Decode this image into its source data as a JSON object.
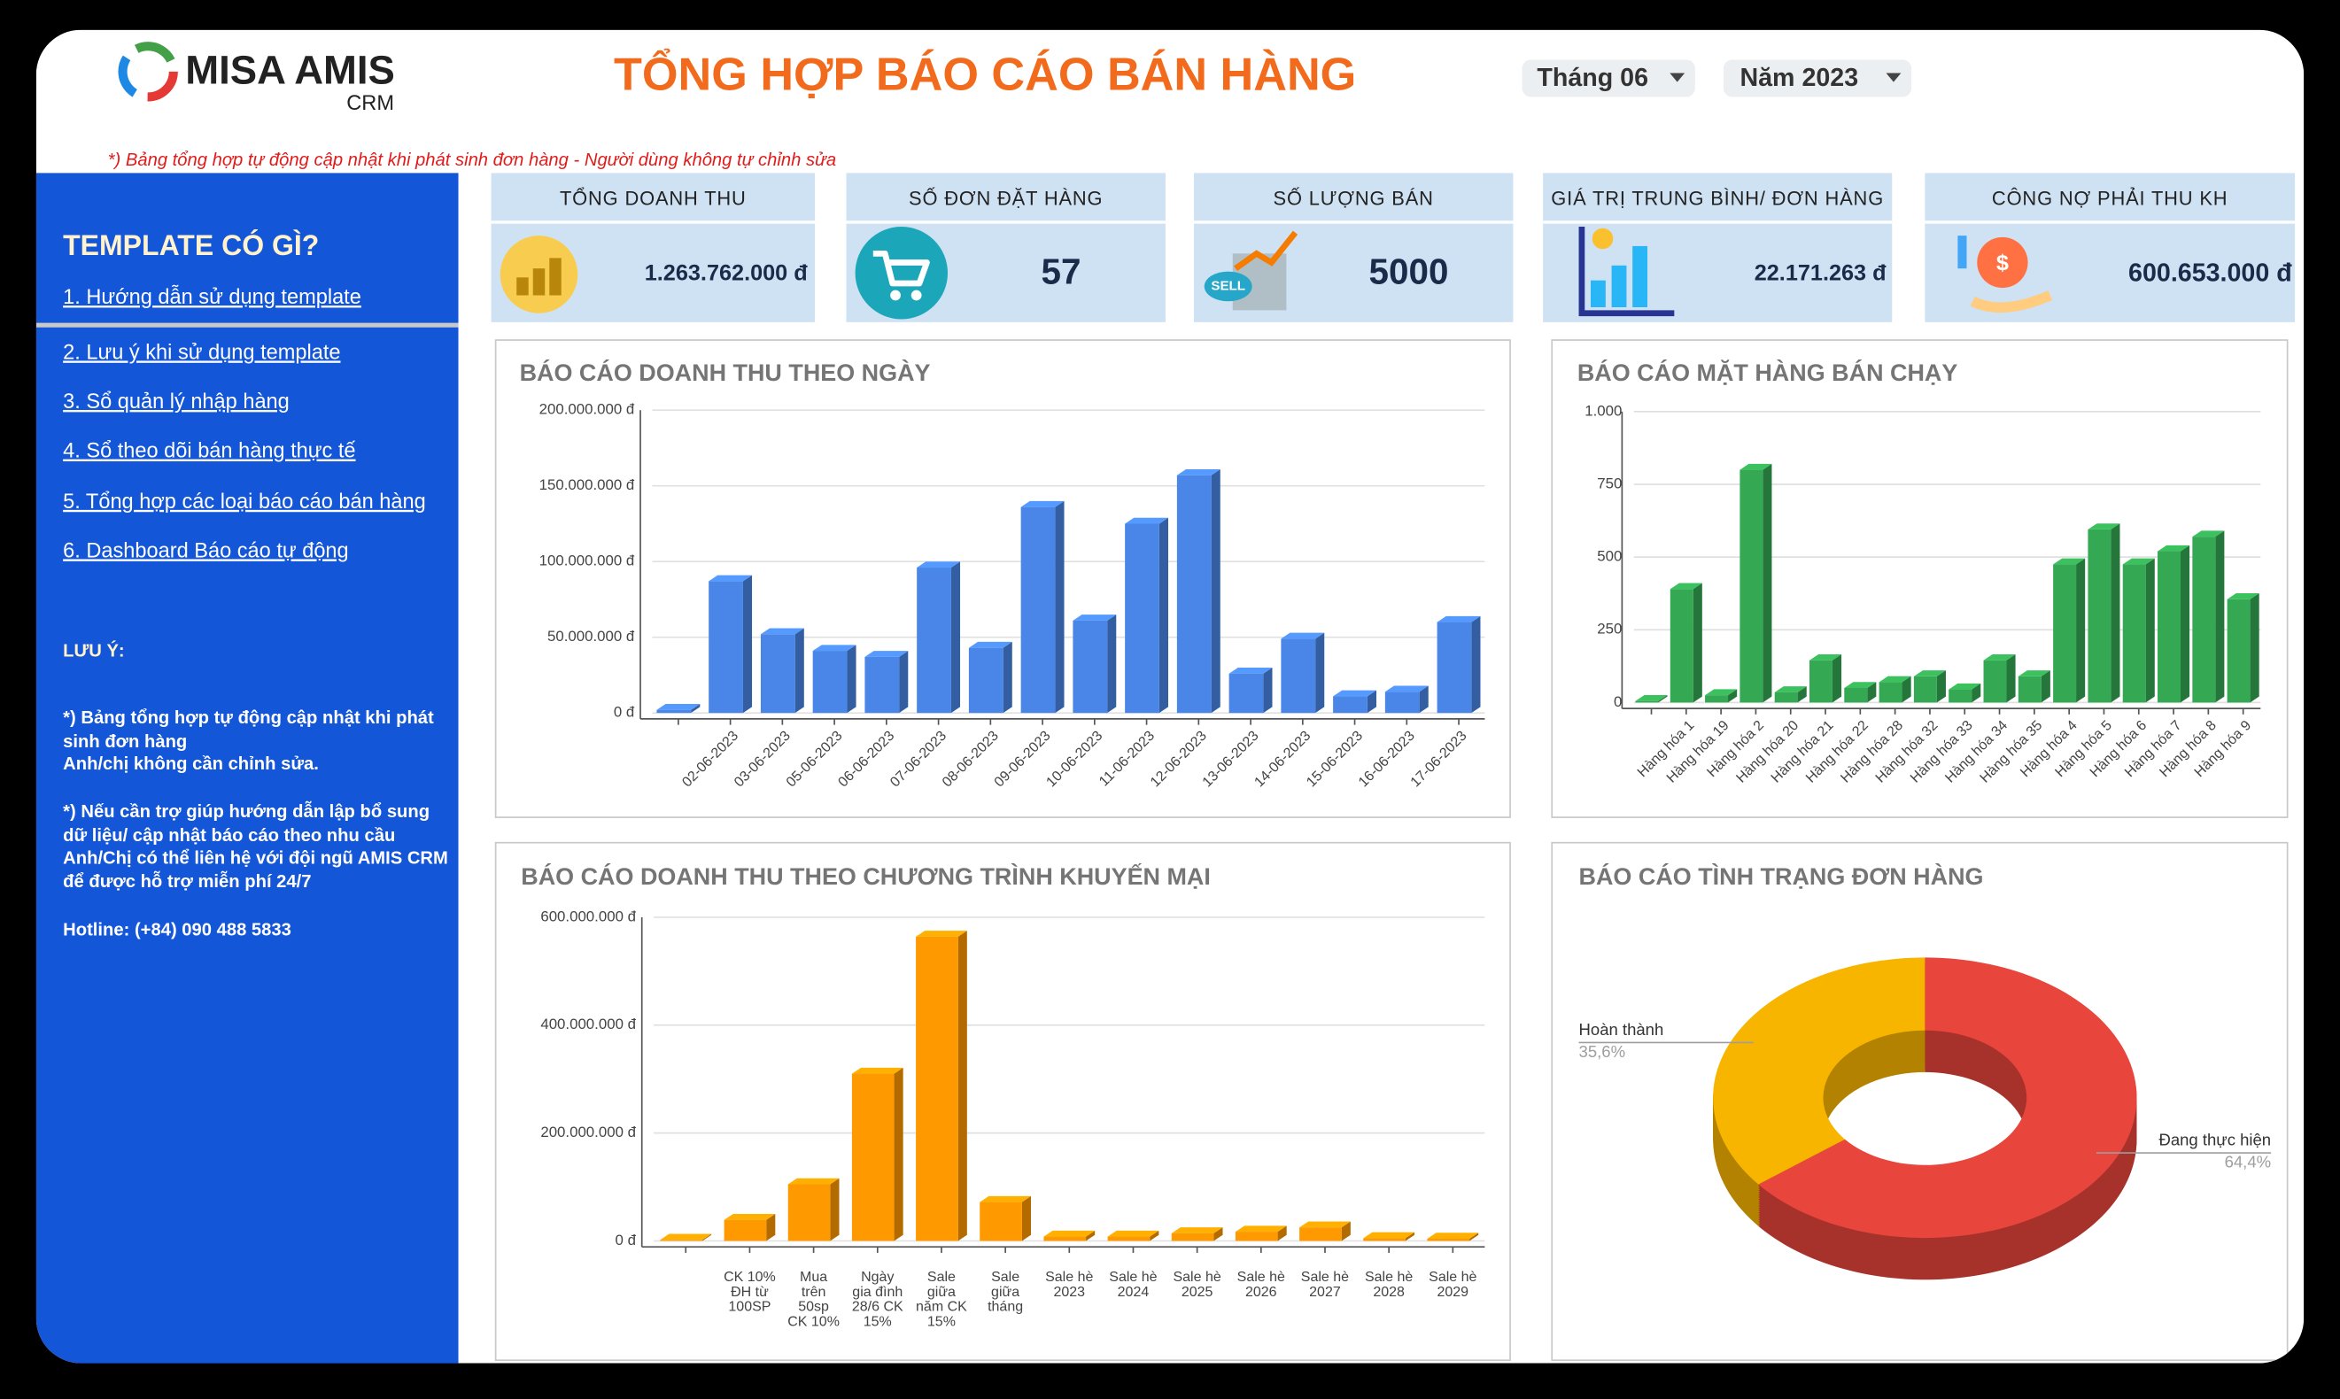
{
  "header": {
    "logo": "MISA AMIS",
    "logo_sub": "CRM",
    "title": "TỔNG HỢP BÁO CÁO BÁN HÀNG",
    "month": "Tháng 06",
    "year": "Năm 2023",
    "note": "*) Bảng tổng hợp tự động cập nhật khi phát sinh đơn hàng - Người dùng không tự chỉnh sửa"
  },
  "sidebar": {
    "heading": "TEMPLATE CÓ GÌ?",
    "links": [
      "1. Hướng dẫn sử dụng template",
      "2. Lưu ý khi sử dụng template",
      "3. Sổ quản lý nhập hàng",
      "4. Sổ theo dõi bán hàng thực tế",
      "5. Tổng hợp các loại báo cáo bán hàng",
      "6. Dashboard Báo cáo tự động"
    ],
    "note_title": "LƯU Ý:",
    "notes": [
      "*) Bảng tổng hợp tự động cập nhật khi phát sinh đơn hàng\nAnh/chị không cần chỉnh sửa.",
      "*) Nếu cần trợ giúp hướng dẫn lập bổ sung dữ liệu/ cập nhật báo cáo theo nhu cầu Anh/Chị có thể liên hệ với đội ngũ AMIS CRM để được hỗ trợ miễn phí 24/7"
    ],
    "hotline": "Hotline:  (+84) 090 488 5833"
  },
  "kpis": [
    {
      "label": "TỔNG DOANH THU",
      "value": "1.263.762.000 đ"
    },
    {
      "label": "SỐ ĐƠN ĐẶT HÀNG",
      "value": "57"
    },
    {
      "label": "SỐ LƯỢNG BÁN",
      "value": "5000"
    },
    {
      "label": "GIÁ TRỊ TRUNG BÌNH/ ĐƠN HÀNG",
      "value": "22.171.263 đ"
    },
    {
      "label": "CÔNG NỢ PHẢI THU KH",
      "value": "600.653.000 đ"
    }
  ],
  "chart_data": [
    {
      "type": "bar",
      "three_d": true,
      "grid": true,
      "label_angle": -45,
      "color": "#4a86e8",
      "title": "BÁO CÁO DOANH THU THEO NGÀY",
      "categories": [
        null,
        "02-06-2023",
        "03-06-2023",
        "05-06-2023",
        "06-06-2023",
        "07-06-2023",
        "08-06-2023",
        "09-06-2023",
        "10-06-2023",
        "11-06-2023",
        "12-06-2023",
        "13-06-2023",
        "14-06-2023",
        "15-06-2023",
        "16-06-2023",
        "17-06-2023"
      ],
      "values": [
        2000000,
        87000000,
        52000000,
        41000000,
        37000000,
        96000000,
        43000000,
        136000000,
        61000000,
        125000000,
        157000000,
        26000000,
        49000000,
        11000000,
        14000000,
        60000000
      ],
      "ylim": [
        0,
        200000000
      ],
      "yticks": [
        {
          "value": 0,
          "label": "0 đ"
        },
        {
          "value": 50000000,
          "label": "50.000.000 đ"
        },
        {
          "value": 100000000,
          "label": "100.000.000 đ"
        },
        {
          "value": 150000000,
          "label": "150.000.000 đ"
        },
        {
          "value": 200000000,
          "label": "200.000.000 đ"
        }
      ]
    },
    {
      "type": "bar",
      "three_d": true,
      "grid": true,
      "label_angle": -45,
      "color": "#34a853",
      "title": "BÁO CÁO MẶT HÀNG BÁN CHẠY",
      "categories": [
        null,
        "Hàng hóa 1",
        "Hàng hóa 19",
        "Hàng hóa 2",
        "Hàng hóa 20",
        "Hàng hóa 21",
        "Hàng hóa 22",
        "Hàng hóa 28",
        "Hàng hóa 32",
        "Hàng hóa 33",
        "Hàng hóa 34",
        "Hàng hóa 35",
        "Hàng hóa 4",
        "Hàng hóa 5",
        "Hàng hóa 6",
        "Hàng hóa 7",
        "Hàng hóa 8",
        "Hàng hóa 9"
      ],
      "values": [
        5,
        390,
        25,
        800,
        35,
        145,
        50,
        70,
        90,
        45,
        145,
        90,
        475,
        595,
        475,
        520,
        570,
        355
      ],
      "ylim": [
        0,
        1000
      ],
      "yticks": [
        0,
        250,
        500,
        750,
        {
          "value": 1000,
          "label": "1.000"
        }
      ]
    },
    {
      "type": "bar",
      "three_d": true,
      "grid": true,
      "color": "#ff9900",
      "title": "BÁO CÁO DOANH THU THEO CHƯƠNG TRÌNH KHUYẾN MẠI",
      "categories": [
        null,
        "CK 10%\nĐH từ\n100SP",
        "Mua\ntrên\n50sp\nCK 10%",
        "Ngày\ngia đình\n28/6 CK\n15%",
        "Sale\ngiữa\nnăm CK\n15%",
        "Sale\ngiữa\ntháng",
        "Sale hè\n2023",
        "Sale hè\n2024",
        "Sale hè\n2025",
        "Sale hè\n2026",
        "Sale hè\n2027",
        "Sale hè\n2028",
        "Sale hè\n2029"
      ],
      "values": [
        2000000,
        39000000,
        105000000,
        310000000,
        564000000,
        72000000,
        8000000,
        8000000,
        14000000,
        17000000,
        25000000,
        5000000,
        4000000
      ],
      "ylim": [
        0,
        600000000
      ],
      "yticks": [
        {
          "value": 0,
          "label": "0 đ"
        },
        {
          "value": 200000000,
          "label": "200.000.000 đ"
        },
        {
          "value": 400000000,
          "label": "400.000.000 đ"
        },
        {
          "value": 600000000,
          "label": "600.000.000 đ"
        }
      ]
    },
    {
      "type": "pie",
      "donut": true,
      "three_d": true,
      "title": "BÁO CÁO TÌNH TRẠNG ĐƠN HÀNG",
      "categories": [
        "Đang thực hiện",
        "Hoàn thành"
      ],
      "values": [
        64.4,
        35.6
      ],
      "value_labels": [
        "64,4%",
        "35,6%"
      ],
      "colors": [
        "#e8453c",
        "#f7b500"
      ]
    }
  ]
}
